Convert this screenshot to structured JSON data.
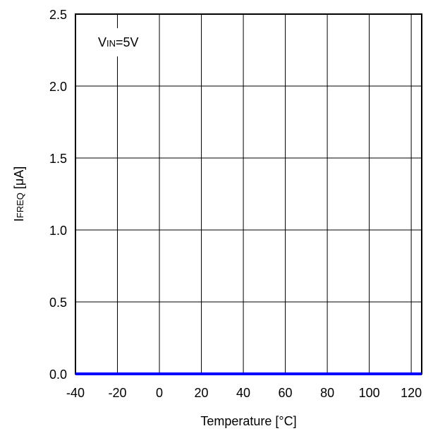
{
  "chart_data": {
    "type": "line",
    "title": "",
    "xlabel": "Temperature [°C]",
    "ylabel": {
      "main": "I",
      "sub": "FREQ",
      "unit": " [μA]"
    },
    "xlim": [
      -40,
      125
    ],
    "ylim": [
      0,
      2.5
    ],
    "x_ticks": [
      -40,
      -20,
      0,
      20,
      40,
      60,
      80,
      100,
      120
    ],
    "y_ticks": [
      0.0,
      0.5,
      1.0,
      1.5,
      2.0,
      2.5
    ],
    "x_tick_labels": [
      "-40",
      "-20",
      "0",
      "20",
      "40",
      "60",
      "80",
      "100",
      "120"
    ],
    "y_tick_labels": [
      "0.0",
      "0.5",
      "1.0",
      "1.5",
      "2.0",
      "2.5"
    ],
    "grid": true,
    "annotation": {
      "main": "V",
      "sub": "IN",
      "rest": "=5V"
    },
    "series": [
      {
        "color": "#0000ff",
        "x": [
          -40,
          -20,
          0,
          20,
          40,
          60,
          80,
          100,
          125
        ],
        "y": [
          0,
          0,
          0,
          0,
          0,
          0,
          0,
          0,
          0
        ]
      }
    ]
  }
}
